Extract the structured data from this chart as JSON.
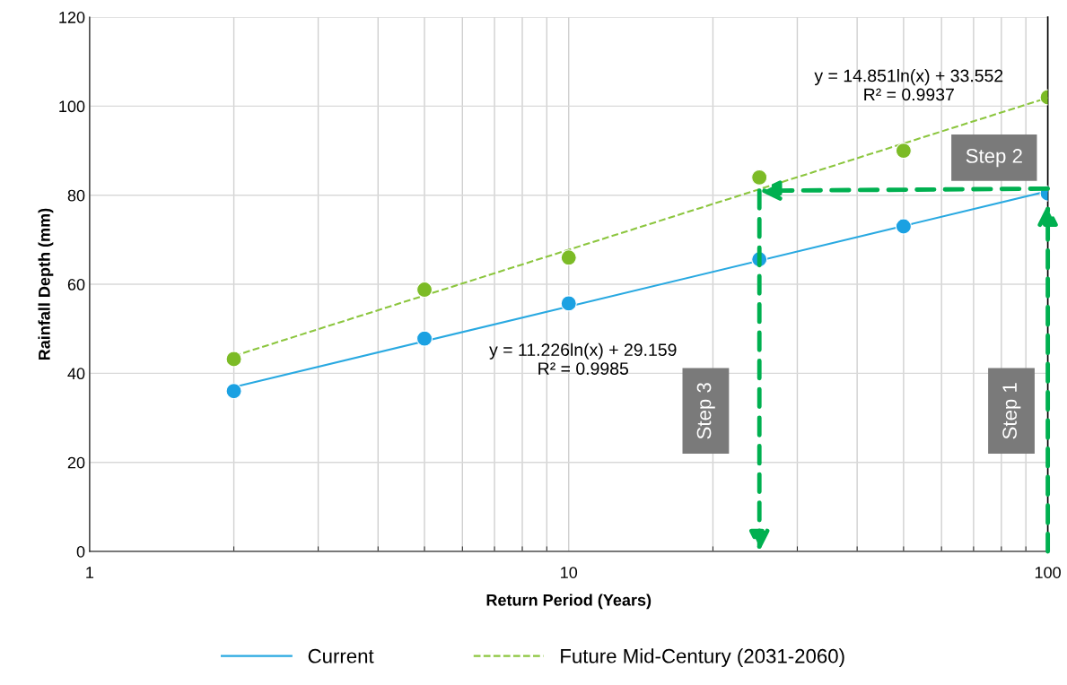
{
  "chart_data": {
    "type": "scatter",
    "xlabel": "Return Period (Years)",
    "ylabel": "Rainfall Depth (mm)",
    "log": "x",
    "xlim": [
      1,
      100
    ],
    "xticks": [
      1,
      10,
      100
    ],
    "ylim": [
      0,
      120
    ],
    "yticks": [
      0,
      20,
      40,
      60,
      80,
      100,
      120
    ],
    "grid": true,
    "legend": "bottom",
    "series": [
      {
        "type": "line",
        "name": "Current",
        "color": "#29a9e1",
        "line_style": "solid",
        "x": [
          2,
          100
        ],
        "values": [
          36.9,
          80.9
        ]
      },
      {
        "type": "line",
        "name": "Future Mid-Century (2031-2060)",
        "color": "#8cc63f",
        "line_style": "dashed",
        "x": [
          2,
          100
        ],
        "values": [
          43.9,
          101.9
        ]
      },
      {
        "marker": "circle",
        "color": "#1ba1e2",
        "x": [
          2,
          5,
          10,
          25,
          50,
          100
        ],
        "values": [
          36,
          47.8,
          55.7,
          65.6,
          73,
          80.4
        ]
      },
      {
        "marker": "circle",
        "color": "#7cbb26",
        "x": [
          2,
          5,
          10,
          25,
          50,
          100
        ],
        "values": [
          43.2,
          58.8,
          66,
          84,
          90,
          102
        ]
      }
    ],
    "annotations": [
      "y = 14.851ln(x) + 33.552\nR² = 0.9937",
      "y = 11.226ln(x) + 29.159\nR² = 0.9985",
      "Step 1",
      "Step 2",
      "Step 3"
    ]
  }
}
